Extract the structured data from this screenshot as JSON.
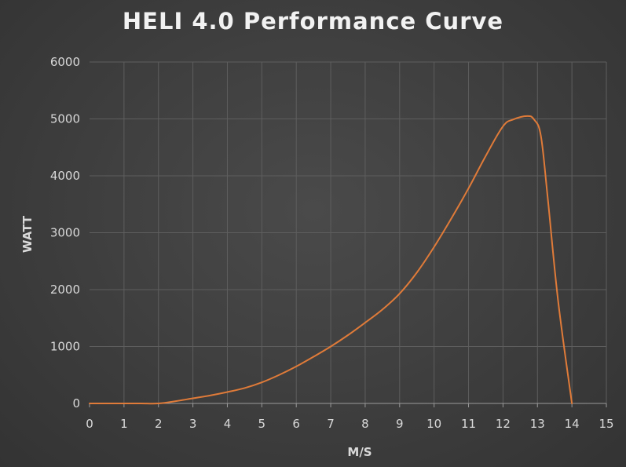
{
  "chart_data": {
    "type": "line",
    "title": "HELI 4.0 Performance Curve",
    "xlabel": "M/S",
    "ylabel": "WATT",
    "xlim": [
      0,
      15
    ],
    "ylim": [
      0,
      6000
    ],
    "x_ticks": [
      "0",
      "1",
      "2",
      "3",
      "4",
      "5",
      "6",
      "7",
      "8",
      "9",
      "10",
      "11",
      "12",
      "13",
      "14",
      "15"
    ],
    "y_ticks": [
      "0",
      "1000",
      "2000",
      "3000",
      "4000",
      "5000",
      "6000"
    ],
    "grid": true,
    "legend": "none",
    "series": [
      {
        "color": "#e07b39",
        "x": [
          0,
          1,
          1.5,
          2,
          2.5,
          3,
          3.5,
          4,
          4.5,
          5,
          5.5,
          6,
          6.5,
          7,
          7.5,
          8,
          8.5,
          9,
          9.5,
          10,
          10.5,
          11,
          11.5,
          12,
          12.3,
          12.7,
          12.9,
          13.1,
          13.3,
          13.6,
          14
        ],
        "y": [
          0,
          0,
          0,
          0,
          40,
          90,
          140,
          200,
          270,
          370,
          500,
          650,
          820,
          1000,
          1200,
          1420,
          1650,
          1930,
          2300,
          2750,
          3250,
          3780,
          4350,
          4870,
          4990,
          5050,
          4990,
          4700,
          3600,
          1800,
          0
        ]
      }
    ]
  }
}
